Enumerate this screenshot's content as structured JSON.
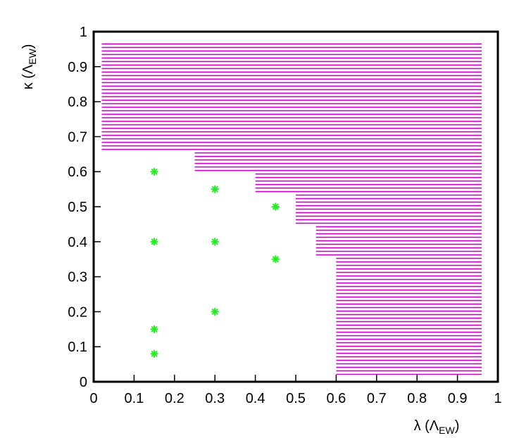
{
  "chart_data": {
    "type": "scatter",
    "xlabel": [
      "λ (Λ",
      "EW",
      ")"
    ],
    "ylabel": [
      "κ (Λ",
      "EW",
      ")"
    ],
    "xlim": [
      0,
      1
    ],
    "ylim": [
      0,
      1
    ],
    "xticks": [
      0,
      0.1,
      0.2,
      0.3,
      0.4,
      0.5,
      0.6,
      0.7,
      0.8,
      0.9,
      1
    ],
    "yticks": [
      0,
      0.1,
      0.2,
      0.3,
      0.4,
      0.5,
      0.6,
      0.7,
      0.8,
      0.9,
      1
    ],
    "region": {
      "color": "#cc00cc",
      "x": [
        0.02,
        0.96,
        0.96,
        0.6,
        0.6,
        0.55,
        0.55,
        0.5,
        0.5,
        0.4,
        0.4,
        0.25,
        0.25,
        0.02
      ],
      "y": [
        0.97,
        0.97,
        0.02,
        0.02,
        0.36,
        0.36,
        0.45,
        0.45,
        0.54,
        0.54,
        0.6,
        0.6,
        0.66,
        0.66
      ]
    },
    "series": [
      {
        "color": "#22ee22",
        "x": [
          0.15,
          0.15,
          0.15,
          0.15,
          0.3,
          0.3,
          0.3,
          0.45,
          0.45
        ],
        "y": [
          0.6,
          0.4,
          0.15,
          0.08,
          0.55,
          0.4,
          0.2,
          0.5,
          0.35
        ]
      }
    ]
  }
}
